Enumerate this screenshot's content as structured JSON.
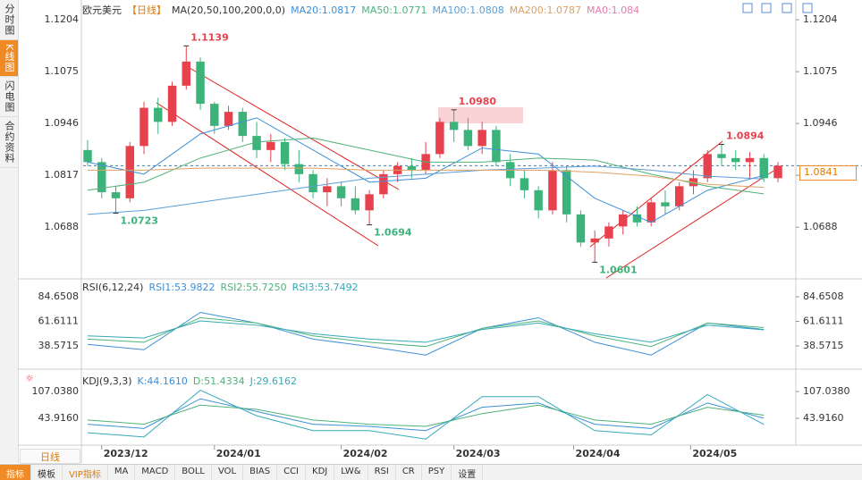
{
  "sidebar": [
    "分时图",
    "K线图",
    "闪电图",
    "合约资料"
  ],
  "timeframe": "日线",
  "toolbar": [
    "指标",
    "模板",
    "VIP指标",
    "MA",
    "MACD",
    "BOLL",
    "VOL",
    "BIAS",
    "CCI",
    "KDJ",
    "LW&",
    "RSI",
    "CR",
    "PSY",
    "设置"
  ],
  "chart_data": [
    {
      "type": "candlestick",
      "title": "欧元美元",
      "subtitle": "【日线】",
      "indicator": "MA(20,50,100,200,0,0)",
      "extra_label": "MA0:1.084",
      "up_color": "#e8414e",
      "down_color": "#3cb37a",
      "last_price": 1.0841,
      "xlim": [
        0,
        49
      ],
      "ylim": [
        1.0564,
        1.1242
      ],
      "yticks": [
        1.1204,
        1.1075,
        1.0946,
        1.0817,
        1.0688
      ],
      "xticks": [
        {
          "value": 1,
          "label": "2023/12"
        },
        {
          "value": 9,
          "label": "2024/01"
        },
        {
          "value": 18,
          "label": "2024/02"
        },
        {
          "value": 26,
          "label": "2024/03"
        },
        {
          "value": 34.5,
          "label": "2024/04"
        },
        {
          "value": 42.8,
          "label": "2024/05"
        }
      ],
      "ohlc": [
        [
          1.088,
          1.0905,
          1.084,
          1.085
        ],
        [
          1.085,
          1.086,
          1.076,
          1.0775
        ],
        [
          1.0775,
          1.079,
          1.0723,
          1.076
        ],
        [
          1.076,
          1.09,
          1.075,
          1.089
        ],
        [
          1.089,
          1.1,
          1.087,
          1.0985
        ],
        [
          1.0985,
          1.101,
          1.092,
          1.095
        ],
        [
          1.095,
          1.105,
          1.094,
          1.104
        ],
        [
          1.104,
          1.1139,
          1.103,
          1.11
        ],
        [
          1.11,
          1.111,
          1.098,
          1.0995
        ],
        [
          1.0995,
          1.1,
          1.092,
          1.094
        ],
        [
          1.094,
          1.099,
          1.093,
          1.0975
        ],
        [
          1.0975,
          1.0985,
          1.09,
          1.0915
        ],
        [
          1.0915,
          1.095,
          1.086,
          1.088
        ],
        [
          1.088,
          1.092,
          1.085,
          1.09
        ],
        [
          1.09,
          1.091,
          1.083,
          1.0845
        ],
        [
          1.0845,
          1.088,
          1.08,
          1.082
        ],
        [
          1.082,
          1.083,
          1.076,
          1.0775
        ],
        [
          1.0775,
          1.081,
          1.074,
          1.079
        ],
        [
          1.079,
          1.08,
          1.074,
          1.076
        ],
        [
          1.076,
          1.079,
          1.072,
          1.073
        ],
        [
          1.073,
          1.078,
          1.0694,
          1.077
        ],
        [
          1.077,
          1.083,
          1.076,
          1.082
        ],
        [
          1.082,
          1.085,
          1.08,
          1.084
        ],
        [
          1.084,
          1.086,
          1.081,
          1.083
        ],
        [
          1.083,
          1.09,
          1.082,
          1.087
        ],
        [
          1.087,
          1.096,
          1.086,
          1.095
        ],
        [
          1.095,
          1.098,
          1.09,
          1.093
        ],
        [
          1.093,
          1.096,
          1.088,
          1.089
        ],
        [
          1.089,
          1.095,
          1.087,
          1.093
        ],
        [
          1.093,
          1.094,
          1.084,
          1.085
        ],
        [
          1.085,
          1.087,
          1.079,
          1.081
        ],
        [
          1.081,
          1.083,
          1.076,
          1.078
        ],
        [
          1.078,
          1.079,
          1.071,
          1.073
        ],
        [
          1.073,
          1.085,
          1.072,
          1.083
        ],
        [
          1.083,
          1.084,
          1.07,
          1.072
        ],
        [
          1.072,
          1.073,
          1.064,
          1.065
        ],
        [
          1.065,
          1.068,
          1.0601,
          1.066
        ],
        [
          1.066,
          1.07,
          1.064,
          1.069
        ],
        [
          1.069,
          1.073,
          1.067,
          1.072
        ],
        [
          1.072,
          1.074,
          1.069,
          1.07
        ],
        [
          1.07,
          1.076,
          1.069,
          1.075
        ],
        [
          1.075,
          1.078,
          1.072,
          1.074
        ],
        [
          1.074,
          1.08,
          1.073,
          1.079
        ],
        [
          1.079,
          1.083,
          1.077,
          1.081
        ],
        [
          1.081,
          1.088,
          1.08,
          1.087
        ],
        [
          1.087,
          1.0894,
          1.084,
          1.086
        ],
        [
          1.086,
          1.088,
          1.083,
          1.085
        ],
        [
          1.085,
          1.0875,
          1.081,
          1.086
        ],
        [
          1.086,
          1.087,
          1.08,
          1.081
        ],
        [
          1.081,
          1.085,
          1.08,
          1.0841
        ]
      ],
      "annotations": [
        {
          "x": 7,
          "value": 1.1139,
          "color": "#e8414e"
        },
        {
          "x": 2,
          "value": 1.0723,
          "color": "#3cb37a"
        },
        {
          "x": 26,
          "value": {
            "value": 1.098,
            "label": "1.0980"
          },
          "color": "#e8414e"
        },
        {
          "x": 20,
          "value": 1.0694,
          "color": "#3cb37a"
        },
        {
          "x": 36,
          "value": 1.0601,
          "color": "#3cb37a"
        },
        {
          "x": 45,
          "value": 1.0894,
          "color": "#e8414e"
        }
      ],
      "x": [
        0,
        4,
        8,
        12,
        16,
        20,
        24,
        28,
        32,
        36,
        40,
        44,
        48
      ],
      "series": [
        {
          "name": "MA20:1.0817",
          "color": "#3d8fd8",
          "values": [
            1.085,
            1.082,
            1.092,
            1.096,
            1.088,
            1.08,
            1.081,
            1.0885,
            1.087,
            1.076,
            1.07,
            1.078,
            1.0817
          ]
        },
        {
          "name": "MA50:1.0771",
          "color": "#4fb27a",
          "values": [
            1.078,
            1.08,
            1.086,
            1.09,
            1.091,
            1.088,
            1.085,
            1.085,
            1.086,
            1.0855,
            1.082,
            1.079,
            1.0771
          ]
        },
        {
          "name": "MA100:1.0808",
          "color": "#5a9ed8",
          "values": [
            1.072,
            1.073,
            1.075,
            1.077,
            1.079,
            1.081,
            1.082,
            1.083,
            1.0835,
            1.084,
            1.083,
            1.0815,
            1.0808
          ]
        },
        {
          "name": "MA200:1.0787",
          "color": "#e0a060",
          "values": [
            1.083,
            1.083,
            1.0835,
            1.0835,
            1.0835,
            1.083,
            1.083,
            1.083,
            1.083,
            1.0825,
            1.0815,
            1.0795,
            1.0787
          ]
        }
      ]
    },
    {
      "type": "line",
      "title": "RSI(6,12,24)",
      "xlim": [
        0,
        49
      ],
      "ylim": [
        19.3,
        98.9
      ],
      "yticks": [
        84.6508,
        61.6111,
        38.5715
      ],
      "x": [
        0,
        4,
        8,
        12,
        16,
        20,
        24,
        28,
        32,
        36,
        40,
        44,
        48
      ],
      "series": [
        {
          "name": "RSI1:53.9822",
          "color": "#3d8fd8",
          "values": [
            40,
            35,
            70,
            60,
            45,
            38,
            30,
            55,
            65,
            42,
            30,
            60,
            54
          ]
        },
        {
          "name": "RSI2:55.7250",
          "color": "#4fb27a",
          "values": [
            45,
            42,
            65,
            60,
            48,
            42,
            38,
            55,
            62,
            48,
            38,
            60,
            55.7
          ]
        },
        {
          "name": "RSI3:53.7492",
          "color": "#35a9b8",
          "values": [
            48,
            46,
            62,
            58,
            50,
            45,
            42,
            54,
            60,
            50,
            42,
            58,
            53.7
          ]
        }
      ]
    },
    {
      "type": "line",
      "title": "KDJ(9,3,3)",
      "xlim": [
        0,
        49
      ],
      "ylim": [
        -19.2,
        134.4
      ],
      "yticks": [
        {
          "value": 107.038,
          "label": "107.0380"
        },
        {
          "value": 43.916,
          "label": "43.9160"
        }
      ],
      "x": [
        0,
        4,
        8,
        12,
        16,
        20,
        24,
        28,
        32,
        36,
        40,
        44,
        48
      ],
      "series": [
        {
          "name": "K:44.1610",
          "color": "#3d8fd8",
          "values": [
            30,
            20,
            90,
            60,
            30,
            25,
            15,
            70,
            80,
            30,
            20,
            80,
            44.2
          ]
        },
        {
          "name": "D:51.4334",
          "color": "#4fb27a",
          "values": [
            40,
            30,
            75,
            65,
            40,
            30,
            25,
            55,
            75,
            40,
            30,
            70,
            51.4
          ]
        },
        {
          "name": "J:29.6162",
          "color": "#35a9b8",
          "values": [
            10,
            0,
            110,
            50,
            15,
            15,
            -5,
            95,
            95,
            15,
            5,
            100,
            29.6
          ]
        }
      ]
    }
  ]
}
